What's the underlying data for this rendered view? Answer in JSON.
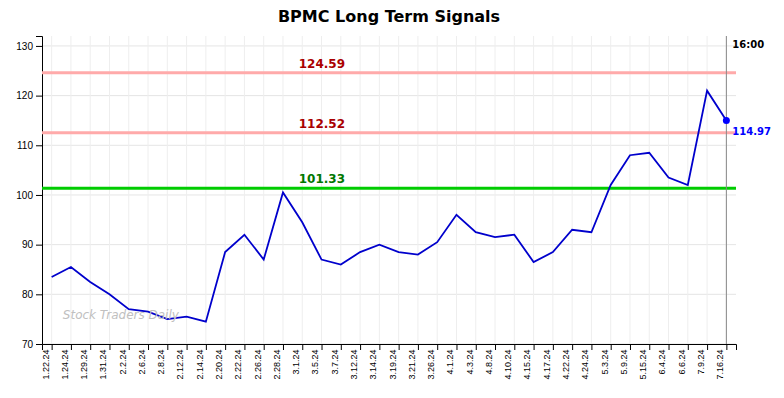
{
  "chart_data": {
    "type": "line",
    "title": "BPMC Long Term Signals",
    "categories": [
      "1.22.24",
      "1.24.24",
      "1.29.24",
      "1.31.24",
      "2.2.24",
      "2.6.24",
      "2.8.24",
      "2.12.24",
      "2.14.24",
      "2.20.24",
      "2.22.24",
      "2.26.24",
      "2.28.24",
      "3.1.24",
      "3.5.24",
      "3.7.24",
      "3.12.24",
      "3.14.24",
      "3.19.24",
      "3.21.24",
      "3.26.24",
      "4.1.24",
      "4.3.24",
      "4.8.24",
      "4.10.24",
      "4.15.24",
      "4.17.24",
      "4.22.24",
      "4.24.24",
      "5.3.24",
      "5.9.24",
      "5.15.24",
      "6.4.24",
      "6.6.24",
      "7.9.24",
      "7.16.24"
    ],
    "values": [
      83.5,
      85.5,
      82.5,
      80.0,
      77.0,
      76.5,
      75.0,
      75.5,
      74.5,
      88.5,
      92.0,
      87.0,
      100.5,
      94.5,
      87.0,
      86.0,
      88.5,
      90.0,
      88.5,
      88.0,
      90.5,
      96.0,
      92.5,
      91.5,
      92.0,
      86.5,
      88.5,
      93.0,
      92.5,
      102.0,
      108.0,
      108.5,
      103.5,
      102.0,
      121.0,
      114.97
    ],
    "color": "#0000cc",
    "reference_lines": [
      {
        "value": 124.59,
        "label": "124.59",
        "color": "#ffaaaa",
        "label_color": "#aa0000"
      },
      {
        "value": 112.52,
        "label": "112.52",
        "color": "#ffaaaa",
        "label_color": "#aa0000"
      },
      {
        "value": 101.33,
        "label": "101.33",
        "color": "#00cc00",
        "label_color": "#007700"
      }
    ],
    "last_price": {
      "value": 114.97,
      "label": "114.97",
      "time": "16:00",
      "color": "#0000ff"
    },
    "watermark": "Stock Traders Daily",
    "ylim": [
      70,
      132
    ],
    "yticks": [
      70,
      80,
      90,
      100,
      110,
      120,
      130
    ],
    "grid": true
  }
}
